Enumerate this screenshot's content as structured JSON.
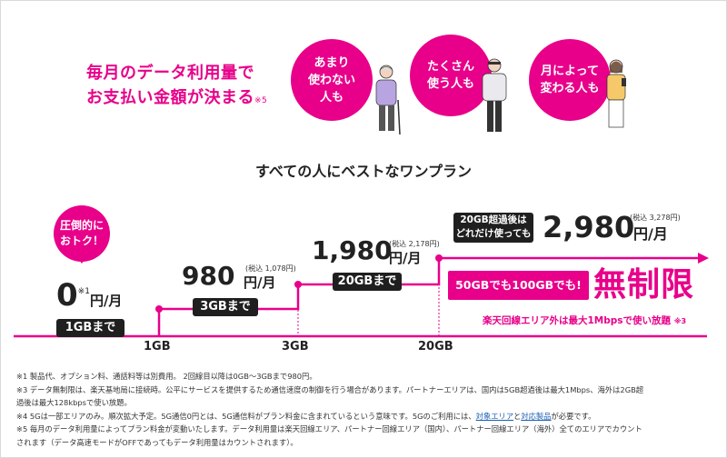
{
  "headline": {
    "line1": "毎月のデータ利用量で",
    "line2": "お支払い金額が決まる",
    "note": "※5"
  },
  "bubbles": [
    {
      "text": "あまり\n使わない\n人も"
    },
    {
      "text": "たくさん\n使う人も"
    },
    {
      "text": "月によって\n変わる人も"
    }
  ],
  "subtitle": "すべての人にベストなワンプラン",
  "tier_free": {
    "callout": "圧倒的に\nおトク！",
    "price": "0",
    "note": "※1",
    "unit": "円/月",
    "badge": "1GBまで"
  },
  "tier_980": {
    "price": "980",
    "tax": "(税込 1,078円)",
    "unit": "円/月",
    "badge": "3GBまで"
  },
  "tier_1980": {
    "price": "1,980",
    "tax": "(税込 2,178円)",
    "unit": "円/月",
    "badge": "20GBまで"
  },
  "tier_2980": {
    "box_line1": "20GB超過後は",
    "box_line2": "どれだけ使っても",
    "price": "2,980",
    "tax": "(税込 3,278円)",
    "unit": "円/月"
  },
  "unlimited": {
    "left": "50GBでも100GBでも!",
    "right": "無制限",
    "sub": "楽天回線エリア外は最大1Mbpsで使い放題",
    "sub_note": "※3"
  },
  "axis": {
    "tick1": "1GB",
    "tick2": "3GB",
    "tick3": "20GB"
  },
  "footnotes": {
    "l1": "※1 製品代、オプション料、通話料等は別費用。 2回線目以降は0GB〜3GBまで980円。",
    "l2": "※3 データ無制限は、楽天基地局に接続時。公平にサービスを提供するため通信速度の制御を行う場合があります。パートナーエリアは、国内は5GB超過後は最大1Mbps、海外は2GB超",
    "l3": "過後は最大128kbpsで使い放題。",
    "l4a": "※4 5Gは一部エリアのみ。順次拡大予定。5G通信0円とは、5G通信料がプラン料金に含まれているという意味です。5Gのご利用には、",
    "l4_link1": "対象エリア",
    "l4_and": "と",
    "l4_link2": "対応製品",
    "l4b": "が必要です。",
    "l5": "※5 毎月のデータ利用量によってプラン料金が変動いたします。データ利用量は楽天回線エリア、パートナー回線エリア（国内）、パートナー回線エリア（海外）全てのエリアでカウント",
    "l6": "されます（データ高速モードがOFFであってもデータ利用量はカウントされます）。"
  },
  "colors": {
    "accent": "#e8008a",
    "dark": "#1f1f1f"
  }
}
